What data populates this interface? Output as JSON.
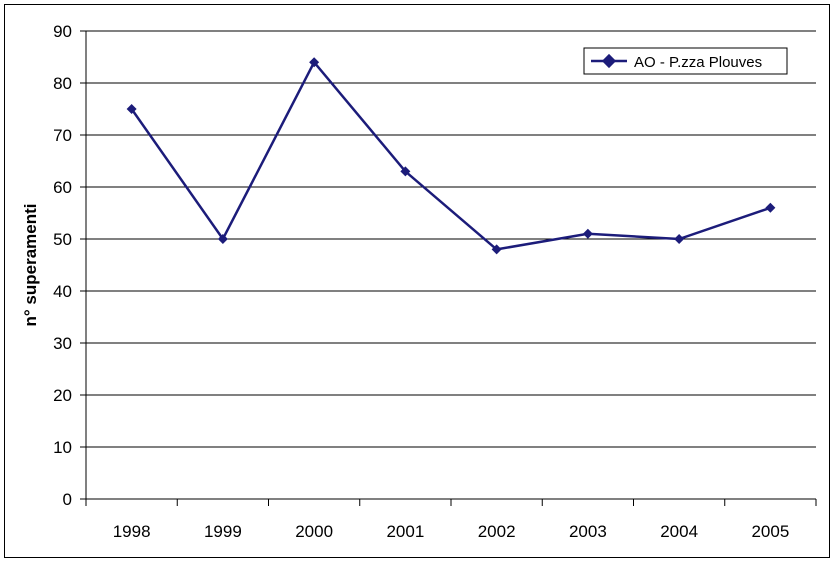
{
  "chart_data": {
    "type": "line",
    "categories": [
      "1998",
      "1999",
      "2000",
      "2001",
      "2002",
      "2003",
      "2004",
      "2005"
    ],
    "series": [
      {
        "name": "AO - P.zza Plouves",
        "values": [
          75,
          50,
          84,
          63,
          48,
          51,
          50,
          56
        ],
        "color": "#1c1c7a"
      }
    ],
    "xlabel": "",
    "ylabel": "n° superamenti",
    "ylim": [
      0,
      90
    ],
    "yticks": [
      "0",
      "10",
      "20",
      "30",
      "40",
      "50",
      "60",
      "70",
      "80",
      "90"
    ],
    "grid": true,
    "legend_position": "top-right"
  }
}
